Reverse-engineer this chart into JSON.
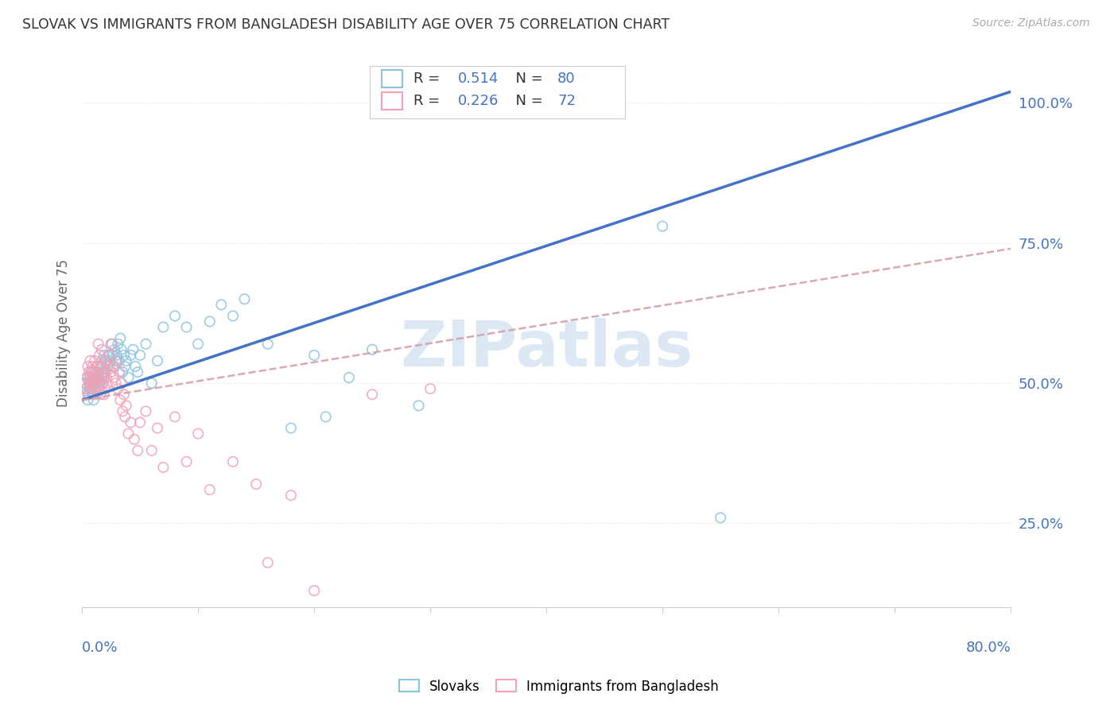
{
  "title": "SLOVAK VS IMMIGRANTS FROM BANGLADESH DISABILITY AGE OVER 75 CORRELATION CHART",
  "source": "Source: ZipAtlas.com",
  "ylabel": "Disability Age Over 75",
  "watermark": "ZIPatlas",
  "title_color": "#333333",
  "source_color": "#aaaaaa",
  "blue_color": "#7ec8e3",
  "pink_color": "#ffb6c1",
  "blue_scatter": "#89c4e1",
  "pink_scatter": "#f4a0b5",
  "right_axis_color": "#4472c4",
  "trend_blue_color": "#4472c4",
  "trend_pink_color": "#d4a0a8",
  "grid_color": "#e0e0e0",
  "background_color": "#ffffff",
  "watermark_color": "#dde8f5",
  "legend_R1": "0.514",
  "legend_N1": "80",
  "legend_R2": "0.226",
  "legend_N2": "72",
  "x_range": [
    0.0,
    0.8
  ],
  "y_range": [
    0.1,
    1.08
  ],
  "trend_blue_x0": 0.0,
  "trend_blue_y0": 0.47,
  "trend_blue_x1": 0.8,
  "trend_blue_y1": 1.02,
  "trend_pink_x0": 0.0,
  "trend_pink_y0": 0.47,
  "trend_pink_x1": 0.8,
  "trend_pink_y1": 0.74,
  "slovak_points": [
    [
      0.002,
      0.48
    ],
    [
      0.003,
      0.5
    ],
    [
      0.004,
      0.49
    ],
    [
      0.005,
      0.47
    ],
    [
      0.005,
      0.51
    ],
    [
      0.006,
      0.5
    ],
    [
      0.006,
      0.48
    ],
    [
      0.007,
      0.49
    ],
    [
      0.007,
      0.51
    ],
    [
      0.008,
      0.5
    ],
    [
      0.008,
      0.52
    ],
    [
      0.009,
      0.48
    ],
    [
      0.009,
      0.51
    ],
    [
      0.01,
      0.47
    ],
    [
      0.01,
      0.5
    ],
    [
      0.01,
      0.52
    ],
    [
      0.011,
      0.49
    ],
    [
      0.011,
      0.51
    ],
    [
      0.012,
      0.5
    ],
    [
      0.012,
      0.52
    ],
    [
      0.013,
      0.48
    ],
    [
      0.013,
      0.51
    ],
    [
      0.013,
      0.53
    ],
    [
      0.014,
      0.5
    ],
    [
      0.014,
      0.52
    ],
    [
      0.015,
      0.49
    ],
    [
      0.015,
      0.51
    ],
    [
      0.016,
      0.5
    ],
    [
      0.016,
      0.53
    ],
    [
      0.017,
      0.51
    ],
    [
      0.017,
      0.54
    ],
    [
      0.018,
      0.5
    ],
    [
      0.018,
      0.52
    ],
    [
      0.019,
      0.51
    ],
    [
      0.019,
      0.55
    ],
    [
      0.02,
      0.52
    ],
    [
      0.021,
      0.54
    ],
    [
      0.022,
      0.53
    ],
    [
      0.023,
      0.55
    ],
    [
      0.024,
      0.54
    ],
    [
      0.025,
      0.57
    ],
    [
      0.026,
      0.55
    ],
    [
      0.027,
      0.53
    ],
    [
      0.028,
      0.56
    ],
    [
      0.029,
      0.54
    ],
    [
      0.03,
      0.55
    ],
    [
      0.031,
      0.57
    ],
    [
      0.032,
      0.54
    ],
    [
      0.033,
      0.58
    ],
    [
      0.034,
      0.56
    ],
    [
      0.035,
      0.52
    ],
    [
      0.036,
      0.55
    ],
    [
      0.037,
      0.53
    ],
    [
      0.038,
      0.54
    ],
    [
      0.04,
      0.51
    ],
    [
      0.042,
      0.55
    ],
    [
      0.044,
      0.56
    ],
    [
      0.046,
      0.53
    ],
    [
      0.048,
      0.52
    ],
    [
      0.05,
      0.55
    ],
    [
      0.055,
      0.57
    ],
    [
      0.06,
      0.5
    ],
    [
      0.065,
      0.54
    ],
    [
      0.07,
      0.6
    ],
    [
      0.08,
      0.62
    ],
    [
      0.09,
      0.6
    ],
    [
      0.1,
      0.57
    ],
    [
      0.11,
      0.61
    ],
    [
      0.12,
      0.64
    ],
    [
      0.13,
      0.62
    ],
    [
      0.14,
      0.65
    ],
    [
      0.16,
      0.57
    ],
    [
      0.18,
      0.42
    ],
    [
      0.2,
      0.55
    ],
    [
      0.21,
      0.44
    ],
    [
      0.23,
      0.51
    ],
    [
      0.25,
      0.56
    ],
    [
      0.29,
      0.46
    ],
    [
      0.5,
      0.78
    ],
    [
      0.55,
      0.26
    ]
  ],
  "bangladesh_points": [
    [
      0.002,
      0.5
    ],
    [
      0.003,
      0.49
    ],
    [
      0.004,
      0.51
    ],
    [
      0.005,
      0.48
    ],
    [
      0.005,
      0.53
    ],
    [
      0.006,
      0.5
    ],
    [
      0.006,
      0.52
    ],
    [
      0.007,
      0.51
    ],
    [
      0.007,
      0.54
    ],
    [
      0.008,
      0.49
    ],
    [
      0.008,
      0.52
    ],
    [
      0.009,
      0.5
    ],
    [
      0.009,
      0.53
    ],
    [
      0.01,
      0.48
    ],
    [
      0.01,
      0.51
    ],
    [
      0.011,
      0.5
    ],
    [
      0.011,
      0.54
    ],
    [
      0.012,
      0.49
    ],
    [
      0.012,
      0.52
    ],
    [
      0.013,
      0.51
    ],
    [
      0.013,
      0.53
    ],
    [
      0.014,
      0.57
    ],
    [
      0.015,
      0.5
    ],
    [
      0.015,
      0.55
    ],
    [
      0.016,
      0.48
    ],
    [
      0.016,
      0.53
    ],
    [
      0.017,
      0.51
    ],
    [
      0.017,
      0.56
    ],
    [
      0.018,
      0.5
    ],
    [
      0.018,
      0.53
    ],
    [
      0.019,
      0.48
    ],
    [
      0.019,
      0.52
    ],
    [
      0.02,
      0.49
    ],
    [
      0.02,
      0.54
    ],
    [
      0.021,
      0.51
    ],
    [
      0.022,
      0.5
    ],
    [
      0.023,
      0.53
    ],
    [
      0.024,
      0.55
    ],
    [
      0.025,
      0.52
    ],
    [
      0.026,
      0.57
    ],
    [
      0.027,
      0.51
    ],
    [
      0.028,
      0.53
    ],
    [
      0.029,
      0.5
    ],
    [
      0.03,
      0.54
    ],
    [
      0.031,
      0.49
    ],
    [
      0.032,
      0.52
    ],
    [
      0.033,
      0.47
    ],
    [
      0.034,
      0.5
    ],
    [
      0.035,
      0.45
    ],
    [
      0.036,
      0.48
    ],
    [
      0.037,
      0.44
    ],
    [
      0.038,
      0.46
    ],
    [
      0.04,
      0.41
    ],
    [
      0.042,
      0.43
    ],
    [
      0.045,
      0.4
    ],
    [
      0.048,
      0.38
    ],
    [
      0.05,
      0.43
    ],
    [
      0.055,
      0.45
    ],
    [
      0.06,
      0.38
    ],
    [
      0.065,
      0.42
    ],
    [
      0.07,
      0.35
    ],
    [
      0.08,
      0.44
    ],
    [
      0.09,
      0.36
    ],
    [
      0.1,
      0.41
    ],
    [
      0.11,
      0.31
    ],
    [
      0.13,
      0.36
    ],
    [
      0.15,
      0.32
    ],
    [
      0.16,
      0.18
    ],
    [
      0.18,
      0.3
    ],
    [
      0.2,
      0.13
    ],
    [
      0.25,
      0.48
    ],
    [
      0.3,
      0.49
    ]
  ],
  "yticks": [
    0.25,
    0.5,
    0.75,
    1.0
  ],
  "ytick_labels": [
    "25.0%",
    "50.0%",
    "75.0%",
    "100.0%"
  ],
  "xtick_labels_show": [
    "0.0%",
    "80.0%"
  ]
}
